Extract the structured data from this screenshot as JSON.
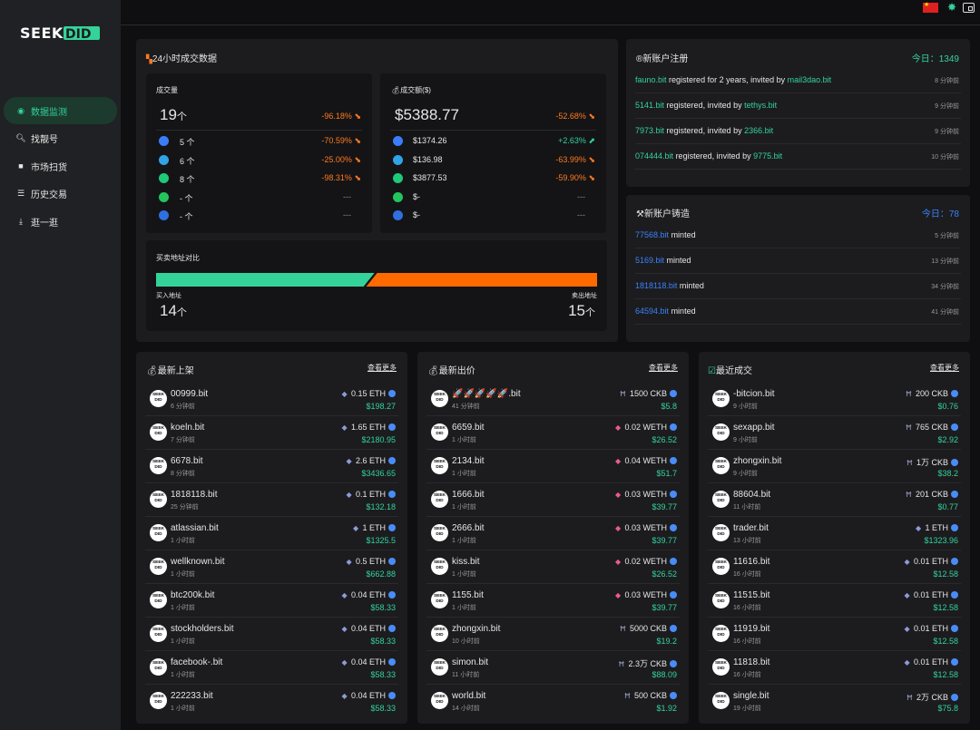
{
  "brand": {
    "logo_text": "SEEKDID"
  },
  "nav": [
    {
      "label": "数据监测",
      "icon": "globe-icon",
      "active": true
    },
    {
      "label": "找靓号",
      "icon": "search-icon",
      "active": false
    },
    {
      "label": "市场扫货",
      "icon": "bag-icon",
      "active": false
    },
    {
      "label": "历史交易",
      "icon": "list-icon",
      "active": false
    },
    {
      "label": "逛一逛",
      "icon": "download-icon",
      "active": false
    }
  ],
  "stats24h": {
    "title": "24小时成交数据",
    "volume": {
      "title": "成交量",
      "total": "19",
      "unit": "个",
      "total_change": "-96.18%",
      "rows": [
        {
          "icon": "eth-icon",
          "value": "5",
          "unit": "个",
          "change": "-70.59%",
          "dir": "down"
        },
        {
          "icon": "bsc-icon",
          "value": "6",
          "unit": "个",
          "change": "-25.00%",
          "dir": "down"
        },
        {
          "icon": "ckb-icon",
          "value": "8",
          "unit": "个",
          "change": "-98.31%",
          "dir": "down"
        },
        {
          "icon": "polygon-icon",
          "value": "-",
          "unit": "个",
          "change": "---",
          "dir": ""
        },
        {
          "icon": "circle-icon",
          "value": "-",
          "unit": "个",
          "change": "---",
          "dir": ""
        }
      ]
    },
    "amount": {
      "title": "成交额($)",
      "total": "$5388.77",
      "total_change": "-52.68%",
      "rows": [
        {
          "icon": "eth-icon",
          "value": "$1374.26",
          "change": "+2.63%",
          "dir": "up"
        },
        {
          "icon": "bsc-icon",
          "value": "$136.98",
          "change": "-63.99%",
          "dir": "down"
        },
        {
          "icon": "ckb-icon",
          "value": "$3877.53",
          "change": "-59.90%",
          "dir": "down"
        },
        {
          "icon": "polygon-icon",
          "value": "$-",
          "change": "---",
          "dir": ""
        },
        {
          "icon": "circle-icon",
          "value": "$-",
          "change": "---",
          "dir": ""
        }
      ]
    },
    "compare": {
      "title": "买卖地址对比",
      "buy_label": "买入地址",
      "buy_value": "14",
      "sell_label": "卖出地址",
      "sell_value": "15",
      "unit": "个",
      "buy_fraction": 0.4828,
      "buy_color": "#33d39a",
      "sell_color": "#ff6a00"
    }
  },
  "registrations": {
    "title": "新账户注册",
    "today_label": "今日：",
    "today_count": "1349",
    "rows": [
      {
        "name": "fauno.bit",
        "text": "registered for 2 years, invited by",
        "inviter": "mail3dao.bit",
        "time": "8 分钟前"
      },
      {
        "name": "5141.bit",
        "text": "registered, invited by",
        "inviter": "tethys.bit",
        "time": "9 分钟前"
      },
      {
        "name": "7973.bit",
        "text": "registered, invited by",
        "inviter": "2366.bit",
        "time": "9 分钟前"
      },
      {
        "name": "074444.bit",
        "text": "registered, invited by",
        "inviter": "9775.bit",
        "time": "10 分钟前"
      }
    ]
  },
  "mints": {
    "title": "新账户铸造",
    "today_label": "今日：",
    "today_count": "78",
    "rows": [
      {
        "name": "77568.bit",
        "text": "minted",
        "time": "5 分钟前"
      },
      {
        "name": "5169.bit",
        "text": "minted",
        "time": "13 分钟前"
      },
      {
        "name": "1818118.bit",
        "text": "minted",
        "time": "34 分钟前"
      },
      {
        "name": "64594.bit",
        "text": "minted",
        "time": "41 分钟前"
      }
    ]
  },
  "listings": {
    "title": "最新上架",
    "more": "查看更多",
    "items": [
      {
        "name": "00999.bit",
        "time": "6 分钟前",
        "price": "0.15 ETH",
        "coin": "eth",
        "usd": "$198.27"
      },
      {
        "name": "koeln.bit",
        "time": "7 分钟前",
        "price": "1.65 ETH",
        "coin": "eth",
        "usd": "$2180.95"
      },
      {
        "name": "6678.bit",
        "time": "8 分钟前",
        "price": "2.6 ETH",
        "coin": "eth",
        "usd": "$3436.65"
      },
      {
        "name": "1818118.bit",
        "time": "25 分钟前",
        "price": "0.1 ETH",
        "coin": "eth",
        "usd": "$132.18"
      },
      {
        "name": "atlassian.bit",
        "time": "1 小时前",
        "price": "1 ETH",
        "coin": "eth",
        "usd": "$1325.5"
      },
      {
        "name": "wellknown.bit",
        "time": "1 小时前",
        "price": "0.5 ETH",
        "coin": "eth",
        "usd": "$662.88"
      },
      {
        "name": "btc200k.bit",
        "time": "1 小时前",
        "price": "0.04 ETH",
        "coin": "eth",
        "usd": "$58.33"
      },
      {
        "name": "stockholders.bit",
        "time": "1 小时前",
        "price": "0.04 ETH",
        "coin": "eth",
        "usd": "$58.33"
      },
      {
        "name": "facebook-.bit",
        "time": "1 小时前",
        "price": "0.04 ETH",
        "coin": "eth",
        "usd": "$58.33"
      },
      {
        "name": "222233.bit",
        "time": "1 小时前",
        "price": "0.04 ETH",
        "coin": "eth",
        "usd": "$58.33"
      }
    ]
  },
  "offers": {
    "title": "最新出价",
    "more": "查看更多",
    "items": [
      {
        "name": "🚀🚀🚀🚀🚀.bit",
        "time": "41 分钟前",
        "price": "1500 CKB",
        "coin": "ckb",
        "usd": "$5.8"
      },
      {
        "name": "6659.bit",
        "time": "1 小时前",
        "price": "0.02 WETH",
        "coin": "weth",
        "usd": "$26.52"
      },
      {
        "name": "2134.bit",
        "time": "1 小时前",
        "price": "0.04 WETH",
        "coin": "weth",
        "usd": "$51.7"
      },
      {
        "name": "1666.bit",
        "time": "1 小时前",
        "price": "0.03 WETH",
        "coin": "weth",
        "usd": "$39.77"
      },
      {
        "name": "2666.bit",
        "time": "1 小时前",
        "price": "0.03 WETH",
        "coin": "weth",
        "usd": "$39.77"
      },
      {
        "name": "kiss.bit",
        "time": "1 小时前",
        "price": "0.02 WETH",
        "coin": "weth",
        "usd": "$26.52"
      },
      {
        "name": "1155.bit",
        "time": "1 小时前",
        "price": "0.03 WETH",
        "coin": "weth",
        "usd": "$39.77"
      },
      {
        "name": "zhongxin.bit",
        "time": "10 小时前",
        "price": "5000 CKB",
        "coin": "ckb",
        "usd": "$19.2"
      },
      {
        "name": "simon.bit",
        "time": "11 小时前",
        "price": "2.3万 CKB",
        "coin": "ckb",
        "usd": "$88.09"
      },
      {
        "name": "world.bit",
        "time": "14 小时前",
        "price": "500 CKB",
        "coin": "ckb",
        "usd": "$1.92"
      }
    ]
  },
  "sales": {
    "title": "最近成交",
    "more": "查看更多",
    "items": [
      {
        "name": "-bitcion.bit",
        "time": "9 小时前",
        "price": "200 CKB",
        "coin": "ckb",
        "usd": "$0.76"
      },
      {
        "name": "sexapp.bit",
        "time": "9 小时前",
        "price": "765 CKB",
        "coin": "ckb",
        "usd": "$2.92"
      },
      {
        "name": "zhongxin.bit",
        "time": "9 小时前",
        "price": "1万 CKB",
        "coin": "ckb",
        "usd": "$38.2"
      },
      {
        "name": "88604.bit",
        "time": "11 小时前",
        "price": "201 CKB",
        "coin": "ckb",
        "usd": "$0.77"
      },
      {
        "name": "trader.bit",
        "time": "13 小时前",
        "price": "1 ETH",
        "coin": "eth",
        "usd": "$1323.96"
      },
      {
        "name": "11616.bit",
        "time": "16 小时前",
        "price": "0.01 ETH",
        "coin": "eth",
        "usd": "$12.58"
      },
      {
        "name": "11515.bit",
        "time": "16 小时前",
        "price": "0.01 ETH",
        "coin": "eth",
        "usd": "$12.58"
      },
      {
        "name": "11919.bit",
        "time": "16 小时前",
        "price": "0.01 ETH",
        "coin": "eth",
        "usd": "$12.58"
      },
      {
        "name": "11818.bit",
        "time": "16 小时前",
        "price": "0.01 ETH",
        "coin": "eth",
        "usd": "$12.58"
      },
      {
        "name": "single.bit",
        "time": "19 小时前",
        "price": "2万 CKB",
        "coin": "ckb",
        "usd": "$75.8"
      }
    ]
  }
}
